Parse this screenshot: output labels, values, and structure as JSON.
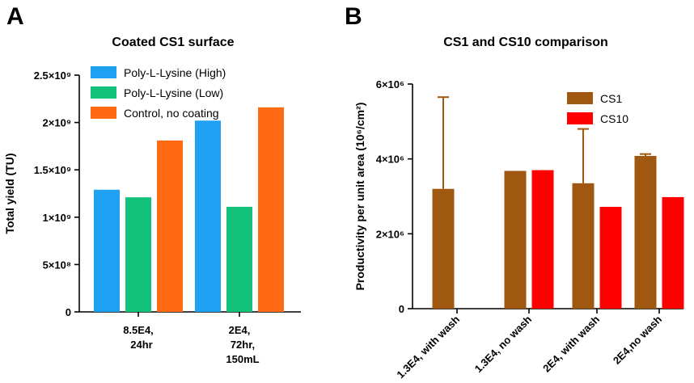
{
  "panels": {
    "a_letter": "A",
    "b_letter": "B"
  },
  "chart_data": [
    {
      "type": "bar",
      "title": "Coated CS1 surface",
      "xlabel": "",
      "ylabel": "Total yield (TU)",
      "ylim": [
        0,
        2500000000
      ],
      "yticks": [
        0,
        500000000,
        1000000000,
        1500000000,
        2000000000,
        2500000000
      ],
      "ytick_labels": [
        "0",
        "5×10⁸",
        "1×10⁹",
        "1.5×10⁹",
        "2×10⁹",
        "2.5×10⁹"
      ],
      "categories": [
        "8.5E4, 24hr",
        "2E4, 72hr, 150mL"
      ],
      "category_label_lines": [
        [
          "8.5E4,",
          "24hr"
        ],
        [
          "2E4,",
          "72hr,",
          "150mL"
        ]
      ],
      "legend_position": "top",
      "series": [
        {
          "name": "Poly-L-Lysine (High)",
          "color": "#1ea1f2",
          "values": [
            1290000000,
            2020000000
          ]
        },
        {
          "name": "Poly-L-Lysine (Low)",
          "color": "#12c27a",
          "values": [
            1210000000,
            1110000000
          ]
        },
        {
          "name": "Control, no coating",
          "color": "#ff6a13",
          "values": [
            1810000000,
            2160000000
          ]
        }
      ]
    },
    {
      "type": "bar",
      "title": "CS1 and CS10 comparison",
      "xlabel": "",
      "ylabel": "Productivity per unit area (10⁶/cm²)",
      "ylim": [
        0,
        6000000
      ],
      "yticks": [
        0,
        2000000,
        4000000,
        6000000
      ],
      "ytick_labels": [
        "0",
        "2×10⁶",
        "4×10⁶",
        "6×10⁶"
      ],
      "categories": [
        "1.3E4, with wash",
        "1.3E4, no wash",
        "2E4, with wash",
        "2E4,no wash"
      ],
      "legend_position": "top-right",
      "series": [
        {
          "name": "CS1",
          "color": "#a0570f",
          "values": [
            3200000,
            3680000,
            3350000,
            4080000
          ],
          "error_upper": [
            5650000,
            null,
            4800000,
            4130000
          ]
        },
        {
          "name": "CS10",
          "color": "#ff0000",
          "values": [
            null,
            3700000,
            2720000,
            2980000
          ]
        }
      ]
    }
  ]
}
